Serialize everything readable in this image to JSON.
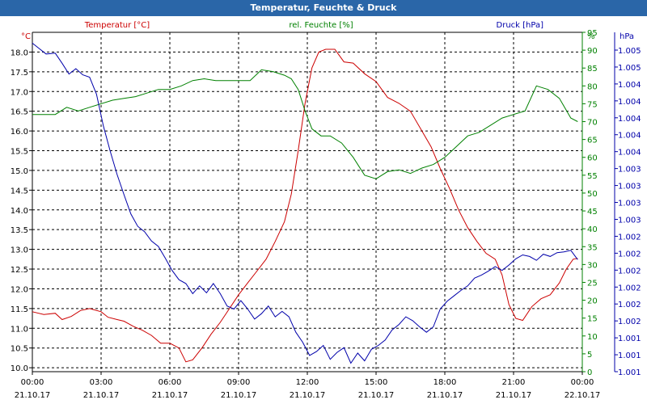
{
  "window": {
    "title": "Temperatur, Feuchte & Druck"
  },
  "chart_data": {
    "type": "line",
    "title": "Temperatur, Feuchte & Druck",
    "colors": {
      "temperature": "#cc0000",
      "humidity": "#008000",
      "pressure": "#0000aa",
      "axis_frame": "#000000",
      "humidity_axis": "#008000",
      "pressure_axis": "#0000aa"
    },
    "legend": [
      {
        "label": "Temperatur [°C]",
        "color": "#cc0000",
        "position": "top-left"
      },
      {
        "label": "rel. Feuchte [%]",
        "color": "#008000",
        "position": "top-center"
      },
      {
        "label": "Druck [hPa]",
        "color": "#0000aa",
        "position": "top-right"
      }
    ],
    "axes": {
      "left": {
        "unit": "°C",
        "range": [
          9.9,
          18.5
        ],
        "ticks": [
          "10.0",
          "10.5",
          "11.0",
          "11.5",
          "12.0",
          "12.5",
          "13.0",
          "13.5",
          "14.0",
          "14.5",
          "15.0",
          "15.5",
          "16.0",
          "16.5",
          "17.0",
          "17.5",
          "18.0"
        ]
      },
      "right1": {
        "unit": "%",
        "range": [
          0,
          95
        ],
        "ticks": [
          "0",
          "5",
          "10",
          "15",
          "20",
          "25",
          "30",
          "35",
          "40",
          "45",
          "50",
          "55",
          "60",
          "65",
          "70",
          "75",
          "80",
          "85",
          "90",
          "95"
        ],
        "extra_label": "%"
      },
      "right2": {
        "unit": "hPa",
        "ticks": [
          "1.001",
          "1.001",
          "1.001",
          "1.002",
          "1.002",
          "1.002",
          "1.002",
          "1.002",
          "1.002",
          "1.003",
          "1.003",
          "1.003",
          "1.003",
          "1.004",
          "1.004",
          "1.004",
          "1.004",
          "1.004",
          "1.005",
          "1.005"
        ]
      },
      "x": {
        "times": [
          "00:00",
          "03:00",
          "06:00",
          "09:00",
          "12:00",
          "15:00",
          "18:00",
          "21:00",
          "00:00"
        ],
        "dates": [
          "21.10.17",
          "21.10.17",
          "21.10.17",
          "21.10.17",
          "21.10.17",
          "21.10.17",
          "21.10.17",
          "21.10.17",
          "22.10.17"
        ],
        "range_hours": [
          0,
          24
        ]
      }
    },
    "grid": true,
    "series": [
      {
        "key": "temperature",
        "name": "Temperatur [°C]",
        "x_hours": [
          0,
          0.5,
          1,
          1.3,
          1.7,
          2.1,
          2.5,
          3,
          3.3,
          3.7,
          4,
          4.4,
          4.8,
          5.2,
          5.6,
          6,
          6.4,
          6.7,
          7,
          7.4,
          7.8,
          8.2,
          8.6,
          9,
          9.4,
          9.8,
          10.2,
          10.6,
          11,
          11.3,
          11.6,
          11.9,
          12.2,
          12.5,
          12.8,
          13.2,
          13.6,
          14,
          14.5,
          15,
          15.5,
          16,
          16.5,
          17,
          17.4,
          17.8,
          18.2,
          18.6,
          19,
          19.4,
          19.8,
          20.2,
          20.5,
          20.8,
          21.1,
          21.4,
          21.8,
          22.2,
          22.6,
          23,
          23.3,
          23.6,
          23.8
        ],
        "values": [
          11.42,
          11.35,
          11.38,
          11.22,
          11.3,
          11.45,
          11.5,
          11.42,
          11.28,
          11.22,
          11.18,
          11.05,
          10.95,
          10.82,
          10.62,
          10.62,
          10.5,
          10.15,
          10.2,
          10.5,
          10.85,
          11.15,
          11.5,
          11.85,
          12.15,
          12.45,
          12.75,
          13.2,
          13.7,
          14.4,
          15.5,
          16.7,
          17.6,
          18.0,
          18.07,
          18.07,
          17.75,
          17.72,
          17.45,
          17.25,
          16.85,
          16.7,
          16.5,
          16.0,
          15.6,
          15.05,
          14.55,
          14.0,
          13.55,
          13.2,
          12.9,
          12.75,
          12.35,
          11.6,
          11.25,
          11.2,
          11.55,
          11.75,
          11.85,
          12.15,
          12.5,
          12.75,
          12.77
        ]
      },
      {
        "key": "humidity",
        "name": "rel. Feuchte [%]",
        "x_hours": [
          0,
          0.5,
          1,
          1.5,
          2,
          2.5,
          3,
          3.5,
          4,
          4.5,
          5,
          5.5,
          6,
          6.5,
          7,
          7.5,
          8,
          8.5,
          9,
          9.5,
          10,
          10.5,
          11,
          11.3,
          11.6,
          11.9,
          12.2,
          12.6,
          13,
          13.5,
          14,
          14.5,
          15,
          15.5,
          16,
          16.5,
          17,
          17.5,
          18,
          18.5,
          19,
          19.5,
          20,
          20.5,
          21,
          21.5,
          22,
          22.5,
          23,
          23.5,
          23.8
        ],
        "values": [
          72,
          72,
          72,
          74,
          73,
          74,
          75,
          76,
          76.5,
          77,
          78,
          79,
          79,
          80,
          81.5,
          82,
          81.5,
          81.5,
          81.5,
          81.5,
          84.5,
          84,
          83,
          82,
          79,
          73,
          68,
          66,
          66,
          64,
          60,
          55,
          54,
          56,
          56.5,
          55.5,
          57,
          58,
          60,
          63,
          66,
          67,
          69,
          71,
          72,
          73,
          80,
          79,
          76.5,
          71,
          70
        ]
      },
      {
        "key": "pressure",
        "name": "Druck [hPa]",
        "x_hours": [
          0,
          0.3,
          0.6,
          1,
          1.3,
          1.6,
          1.9,
          2.2,
          2.5,
          2.8,
          3.1,
          3.4,
          3.7,
          4,
          4.3,
          4.6,
          4.9,
          5.2,
          5.5,
          5.8,
          6.1,
          6.4,
          6.7,
          7,
          7.3,
          7.6,
          7.9,
          8.2,
          8.5,
          8.8,
          9.1,
          9.4,
          9.7,
          10,
          10.3,
          10.6,
          10.9,
          11.2,
          11.5,
          11.8,
          12.1,
          12.4,
          12.7,
          13,
          13.3,
          13.6,
          13.9,
          14.2,
          14.5,
          14.8,
          15.1,
          15.4,
          15.7,
          16,
          16.3,
          16.6,
          16.9,
          17.2,
          17.5,
          17.8,
          18.1,
          18.4,
          18.7,
          19,
          19.3,
          19.6,
          19.9,
          20.2,
          20.5,
          20.8,
          21.1,
          21.4,
          21.7,
          22,
          22.3,
          22.6,
          22.9,
          23.2,
          23.5,
          23.8
        ],
        "values": [
          1.00492,
          1.00485,
          1.00478,
          1.00479,
          1.00466,
          1.00452,
          1.00459,
          1.00451,
          1.00448,
          1.00426,
          1.00385,
          1.00352,
          1.00322,
          1.00296,
          1.00271,
          1.00255,
          1.00248,
          1.00236,
          1.00229,
          1.00214,
          1.00198,
          1.00186,
          1.00181,
          1.00168,
          1.00178,
          1.00169,
          1.00181,
          1.00168,
          1.00152,
          1.00148,
          1.00159,
          1.00148,
          1.00135,
          1.00142,
          1.00152,
          1.00138,
          1.00145,
          1.00138,
          1.00118,
          1.00105,
          1.00088,
          1.00093,
          1.00101,
          1.00083,
          1.00092,
          1.00098,
          1.00078,
          1.00091,
          1.00081,
          1.00096,
          1.00101,
          1.00108,
          1.00121,
          1.00128,
          1.00138,
          1.00133,
          1.00125,
          1.00118,
          1.00125,
          1.00148,
          1.00158,
          1.00165,
          1.00172,
          1.00178,
          1.00188,
          1.00192,
          1.00197,
          1.00203,
          1.00198,
          1.00205,
          1.00213,
          1.00218,
          1.00216,
          1.00211,
          1.00219,
          1.00216,
          1.00221,
          1.00222,
          1.00224,
          1.00212
        ]
      }
    ]
  }
}
